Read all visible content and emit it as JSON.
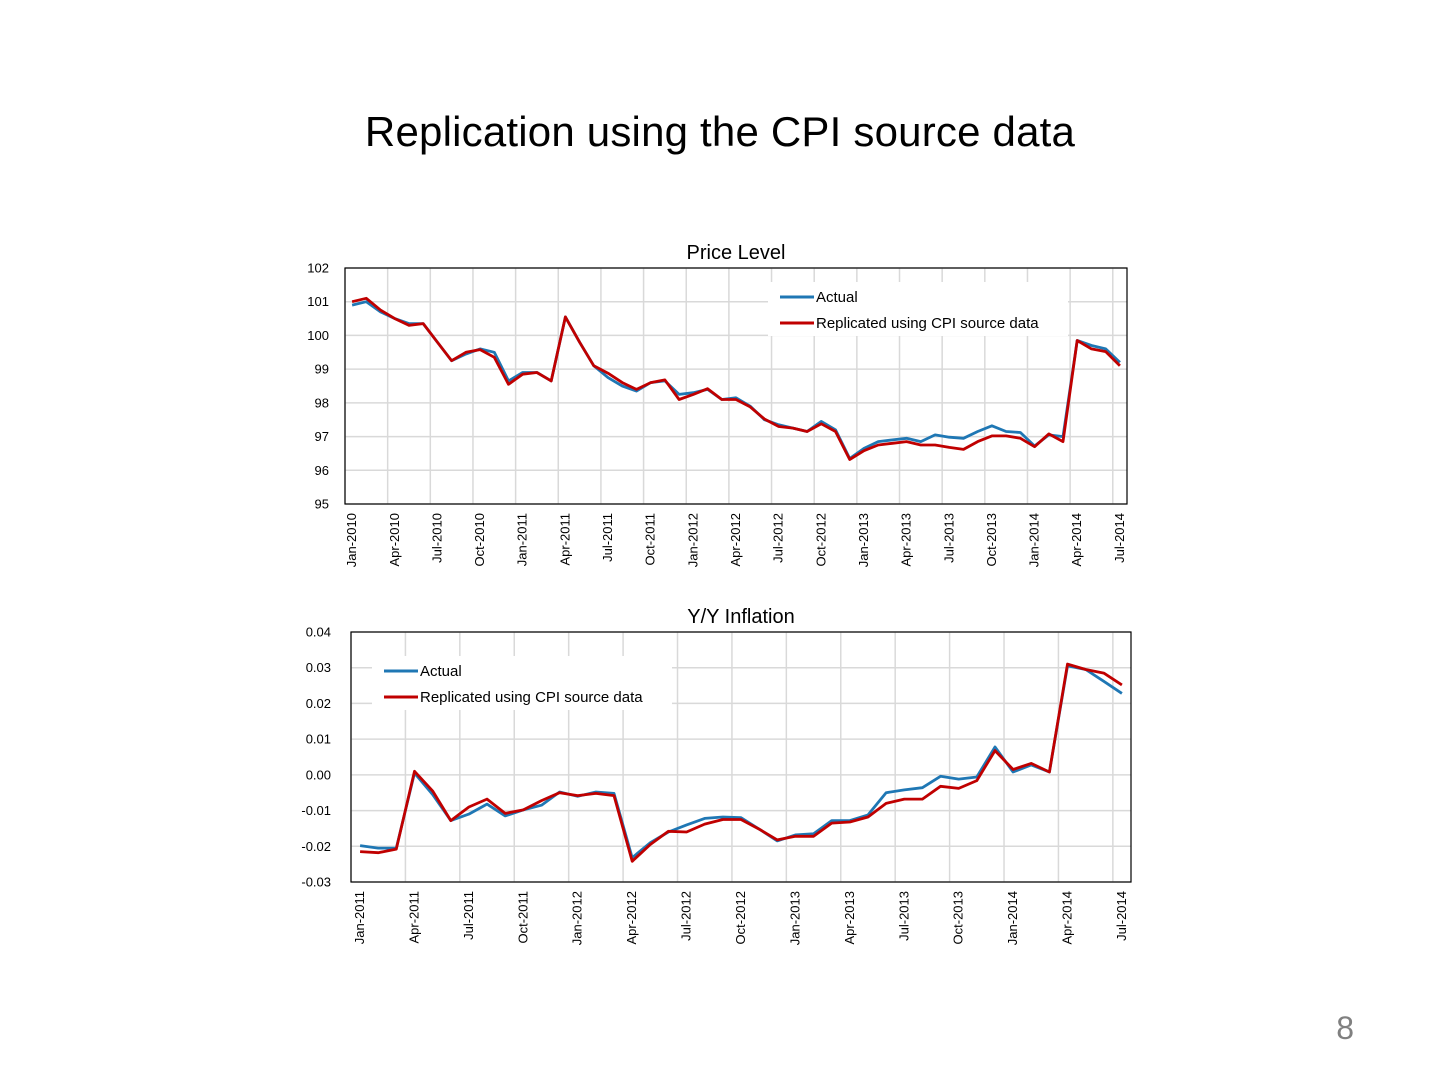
{
  "slide": {
    "title": "Replication using the CPI source data",
    "page_number": "8"
  },
  "colors": {
    "actual": "#1f77b4",
    "replicated": "#c00000",
    "grid": "#d9d9d9",
    "axis": "#000000"
  },
  "chart_data": [
    {
      "type": "line",
      "title": "Price Level",
      "xlabel": "",
      "ylabel": "",
      "ylim": [
        95,
        102
      ],
      "y_ticks": [
        95,
        96,
        97,
        98,
        99,
        100,
        101,
        102
      ],
      "y_tick_labels": [
        "95",
        "96",
        "97",
        "98",
        "99",
        "100",
        "101",
        "102"
      ],
      "x_tick_labels": [
        "Jan-2010",
        "Apr-2010",
        "Jul-2010",
        "Oct-2010",
        "Jan-2011",
        "Apr-2011",
        "Jul-2011",
        "Oct-2011",
        "Jan-2012",
        "Apr-2012",
        "Jul-2012",
        "Oct-2012",
        "Jan-2013",
        "Apr-2013",
        "Jul-2013",
        "Oct-2013",
        "Jan-2014",
        "Apr-2014",
        "Jul-2014"
      ],
      "grid": true,
      "legend_position": "top-right",
      "x": [
        "Jan-2010",
        "Feb-2010",
        "Mar-2010",
        "Apr-2010",
        "May-2010",
        "Jun-2010",
        "Jul-2010",
        "Aug-2010",
        "Sep-2010",
        "Oct-2010",
        "Nov-2010",
        "Dec-2010",
        "Jan-2011",
        "Feb-2011",
        "Mar-2011",
        "Apr-2011",
        "May-2011",
        "Jun-2011",
        "Jul-2011",
        "Aug-2011",
        "Sep-2011",
        "Oct-2011",
        "Nov-2011",
        "Dec-2011",
        "Jan-2012",
        "Feb-2012",
        "Mar-2012",
        "Apr-2012",
        "May-2012",
        "Jun-2012",
        "Jul-2012",
        "Aug-2012",
        "Sep-2012",
        "Oct-2012",
        "Nov-2012",
        "Dec-2012",
        "Jan-2013",
        "Feb-2013",
        "Mar-2013",
        "Apr-2013",
        "May-2013",
        "Jun-2013",
        "Jul-2013",
        "Aug-2013",
        "Sep-2013",
        "Oct-2013",
        "Nov-2013",
        "Dec-2013",
        "Jan-2014",
        "Feb-2014",
        "Mar-2014",
        "Apr-2014",
        "May-2014",
        "Jun-2014",
        "Jul-2014"
      ],
      "series": [
        {
          "name": "Actual",
          "values": [
            100.9,
            101.0,
            100.7,
            100.5,
            100.35,
            100.35,
            99.8,
            99.25,
            99.45,
            99.6,
            99.5,
            98.65,
            98.9,
            98.9,
            98.65,
            100.55,
            99.8,
            99.1,
            98.75,
            98.5,
            98.35,
            98.6,
            98.65,
            98.25,
            98.3,
            98.4,
            98.1,
            98.15,
            97.9,
            97.5,
            97.35,
            97.25,
            97.15,
            97.45,
            97.2,
            96.35,
            96.65,
            96.85,
            96.9,
            96.95,
            96.85,
            97.05,
            96.98,
            96.95,
            97.15,
            97.32,
            97.15,
            97.12,
            96.72,
            97.05,
            97.0,
            99.85,
            99.7,
            99.6,
            99.2
          ],
          "color": "#1f77b4"
        },
        {
          "name": "Replicated using CPI source data",
          "values": [
            101.0,
            101.1,
            100.75,
            100.5,
            100.3,
            100.35,
            99.8,
            99.25,
            99.5,
            99.58,
            99.35,
            98.55,
            98.85,
            98.9,
            98.65,
            100.55,
            99.8,
            99.1,
            98.88,
            98.6,
            98.4,
            98.6,
            98.68,
            98.1,
            98.25,
            98.42,
            98.1,
            98.1,
            97.88,
            97.52,
            97.3,
            97.25,
            97.15,
            97.38,
            97.15,
            96.32,
            96.58,
            96.75,
            96.8,
            96.85,
            96.75,
            96.75,
            96.68,
            96.62,
            96.85,
            97.02,
            97.02,
            96.95,
            96.7,
            97.08,
            96.85,
            99.85,
            99.6,
            99.52,
            99.1
          ],
          "color": "#c00000"
        }
      ]
    },
    {
      "type": "line",
      "title": "Y/Y Inflation",
      "xlabel": "",
      "ylabel": "",
      "ylim": [
        -0.03,
        0.04
      ],
      "y_ticks": [
        -0.03,
        -0.02,
        -0.01,
        0,
        0.01,
        0.02,
        0.03,
        0.04
      ],
      "y_tick_labels": [
        "-0.03",
        "-0.02",
        "-0.01",
        "0.00",
        "0.01",
        "0.02",
        "0.03",
        "0.04"
      ],
      "x_tick_labels": [
        "Jan-2011",
        "Apr-2011",
        "Jul-2011",
        "Oct-2011",
        "Jan-2012",
        "Apr-2012",
        "Jul-2012",
        "Oct-2012",
        "Jan-2013",
        "Apr-2013",
        "Jul-2013",
        "Oct-2013",
        "Jan-2014",
        "Apr-2014",
        "Jul-2014"
      ],
      "grid": true,
      "legend_position": "top-left",
      "x": [
        "Jan-2011",
        "Feb-2011",
        "Mar-2011",
        "Apr-2011",
        "May-2011",
        "Jun-2011",
        "Jul-2011",
        "Aug-2011",
        "Sep-2011",
        "Oct-2011",
        "Nov-2011",
        "Dec-2011",
        "Jan-2012",
        "Feb-2012",
        "Mar-2012",
        "Apr-2012",
        "May-2012",
        "Jun-2012",
        "Jul-2012",
        "Aug-2012",
        "Sep-2012",
        "Oct-2012",
        "Nov-2012",
        "Dec-2012",
        "Jan-2013",
        "Feb-2013",
        "Mar-2013",
        "Apr-2013",
        "May-2013",
        "Jun-2013",
        "Jul-2013",
        "Aug-2013",
        "Sep-2013",
        "Oct-2013",
        "Nov-2013",
        "Dec-2013",
        "Jan-2014",
        "Feb-2014",
        "Mar-2014",
        "Apr-2014",
        "May-2014",
        "Jun-2014",
        "Jul-2014"
      ],
      "series": [
        {
          "name": "Actual",
          "values": [
            -0.0198,
            -0.0205,
            -0.0205,
            0.0005,
            -0.0055,
            -0.0128,
            -0.011,
            -0.0082,
            -0.0115,
            -0.0098,
            -0.0085,
            -0.0048,
            -0.006,
            -0.0048,
            -0.0052,
            -0.0232,
            -0.019,
            -0.016,
            -0.014,
            -0.0122,
            -0.0118,
            -0.012,
            -0.0152,
            -0.0185,
            -0.0168,
            -0.0165,
            -0.0128,
            -0.0128,
            -0.0112,
            -0.005,
            -0.0042,
            -0.0036,
            -0.0004,
            -0.0012,
            -0.0006,
            0.0078,
            0.0008,
            0.0028,
            0.0008,
            0.0305,
            0.0295,
            0.0262,
            0.0228
          ],
          "color": "#1f77b4"
        },
        {
          "name": "Replicated using CPI source data",
          "values": [
            -0.0215,
            -0.0218,
            -0.0208,
            0.001,
            -0.0045,
            -0.0128,
            -0.009,
            -0.0068,
            -0.0108,
            -0.0098,
            -0.0072,
            -0.005,
            -0.0058,
            -0.0052,
            -0.0058,
            -0.0242,
            -0.0195,
            -0.0158,
            -0.016,
            -0.0138,
            -0.0125,
            -0.0125,
            -0.0152,
            -0.0182,
            -0.0172,
            -0.0172,
            -0.0135,
            -0.0132,
            -0.0118,
            -0.008,
            -0.0068,
            -0.0068,
            -0.0032,
            -0.0038,
            -0.0016,
            0.0068,
            0.0015,
            0.0032,
            0.0008,
            0.031,
            0.0295,
            0.0285,
            0.0252
          ],
          "color": "#c00000"
        }
      ]
    }
  ]
}
